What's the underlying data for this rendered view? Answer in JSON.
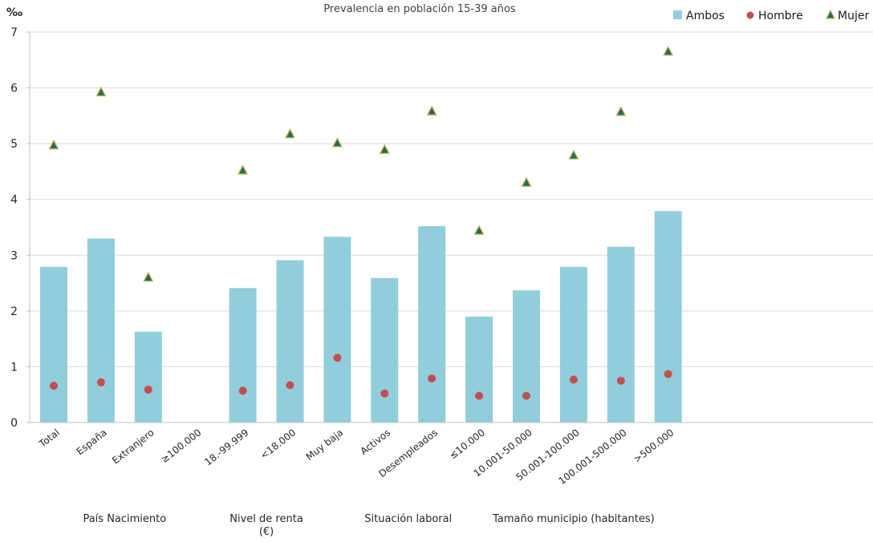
{
  "chart_data": {
    "type": "bar",
    "title": "Prevalencia en población 15-39 años",
    "ylabel": "‰",
    "ylim": [
      0,
      7
    ],
    "yticks": [
      0,
      1,
      2,
      3,
      4,
      5,
      6,
      7
    ],
    "grid": true,
    "legend_position": "top-right",
    "categories": [
      "Total",
      "España",
      "Extranjero",
      "≥100.000",
      "18.-99.999",
      "<18.000",
      "Muy baja",
      "Activos",
      "Desempleados",
      "≤10.000",
      "10.001-50.000",
      "50.001-100.000",
      "100.001-500.000",
      ">500.000"
    ],
    "groups": [
      {
        "label": "País Nacimiento",
        "categories": [
          "España",
          "Extranjero"
        ]
      },
      {
        "label": "Nivel de renta (€)",
        "categories": [
          "≥100.000",
          "18.-99.999",
          "<18.000",
          "Muy baja"
        ]
      },
      {
        "label": "Situación laboral",
        "categories": [
          "Activos",
          "Desempleados"
        ]
      },
      {
        "label": "Tamaño municipio (habitantes)",
        "categories": [
          "≤10.000",
          "10.001-50.000",
          "50.001-100.000",
          "100.001-500.000",
          ">500.000"
        ]
      }
    ],
    "series": [
      {
        "name": "Ambos",
        "kind": "bar",
        "color": "#92cddc",
        "values": [
          2.79,
          3.3,
          1.63,
          null,
          2.41,
          2.91,
          3.33,
          2.59,
          3.52,
          1.9,
          2.37,
          2.79,
          3.15,
          3.79
        ]
      },
      {
        "name": "Hombre",
        "kind": "dot",
        "color": "#c0504d",
        "values": [
          0.66,
          0.72,
          0.59,
          null,
          0.57,
          0.67,
          1.16,
          0.52,
          0.79,
          0.48,
          0.48,
          0.77,
          0.75,
          0.87
        ]
      },
      {
        "name": "Mujer",
        "kind": "triangle",
        "color": "#1f6b5f",
        "edge_color": "#c9b64f",
        "values": [
          4.97,
          5.92,
          2.6,
          null,
          4.52,
          5.17,
          5.01,
          4.89,
          5.58,
          3.44,
          4.3,
          4.79,
          5.57,
          6.65
        ]
      }
    ]
  }
}
